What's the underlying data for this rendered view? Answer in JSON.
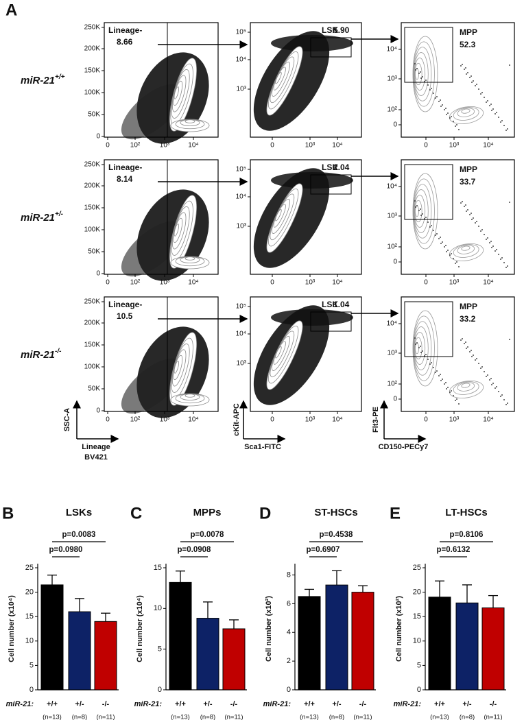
{
  "panel_a": {
    "letter": "A",
    "gate_labels": {
      "lineage": "Lineage-",
      "lsk": "LSK",
      "mpp": "MPP"
    },
    "genotype_name": "miR-21",
    "rows": [
      {
        "genotype": "+/+",
        "lineage": "8.66",
        "lsk": "5.90",
        "mpp": "52.3"
      },
      {
        "genotype": "+/-",
        "lineage": "8.14",
        "lsk": "2.04",
        "mpp": "33.7"
      },
      {
        "genotype": "-/-",
        "lineage": "10.5",
        "lsk": "1.04",
        "mpp": "33.2"
      }
    ],
    "plots": [
      {
        "yticks": [
          "0",
          "50K",
          "100K",
          "150K",
          "200K",
          "250K"
        ],
        "xticks": [
          "0",
          "10²",
          "10³",
          "10⁴"
        ],
        "ylabel": "SSC-A",
        "xlabel": [
          "Lineage",
          "BV421"
        ]
      },
      {
        "yticks": [
          "10³",
          "10⁴",
          "10⁵"
        ],
        "xticks": [
          "0",
          "10³",
          "10⁴"
        ],
        "ylabel": "cKit-APC",
        "xlabel": [
          "Sca1-FITC"
        ]
      },
      {
        "yticks": [
          "0",
          "10²",
          "10³",
          "10⁴"
        ],
        "xticks": [
          "0",
          "10³",
          "10⁴"
        ],
        "ylabel": "Flt3-PE",
        "xlabel": [
          "CD150-PECy7"
        ]
      }
    ]
  },
  "chart_data": [
    {
      "type": "bar",
      "letter": "B",
      "title": "LSKs",
      "y_label": "Cell number (x10⁴)",
      "x_label": "miR-21:",
      "categories": [
        "+/+",
        "+/-",
        "-/-"
      ],
      "category_notes": [
        "(n=13)",
        "(n=8)",
        "(n=11)"
      ],
      "values": [
        21.5,
        16,
        14
      ],
      "errors": [
        2,
        2.7,
        1.7
      ],
      "colors": [
        "#000000",
        "#0d2266",
        "#c00000"
      ],
      "ylim": [
        0,
        25
      ],
      "yticks": [
        0,
        5,
        10,
        15,
        20,
        25
      ],
      "comparisons": [
        {
          "groups": [
            "+/+",
            "+/-"
          ],
          "label": "p=0.0980"
        },
        {
          "groups": [
            "+/+",
            "-/-"
          ],
          "label": "p=0.0083"
        }
      ]
    },
    {
      "type": "bar",
      "letter": "C",
      "title": "MPPs",
      "y_label": "Cell number (x10⁴)",
      "x_label": "miR-21:",
      "categories": [
        "+/+",
        "+/-",
        "-/-"
      ],
      "category_notes": [
        "(n=13)",
        "(n=8)",
        "(n=11)"
      ],
      "values": [
        13.2,
        8.8,
        7.5
      ],
      "errors": [
        1.4,
        2,
        1.1
      ],
      "colors": [
        "#000000",
        "#0d2266",
        "#c00000"
      ],
      "ylim": [
        0,
        15
      ],
      "yticks": [
        0,
        5,
        10,
        15
      ],
      "comparisons": [
        {
          "groups": [
            "+/+",
            "+/-"
          ],
          "label": "p=0.0908"
        },
        {
          "groups": [
            "+/+",
            "-/-"
          ],
          "label": "p=0.0078"
        }
      ]
    },
    {
      "type": "bar",
      "letter": "D",
      "title": "ST-HSCs",
      "y_label": "Cell number (x10²)",
      "x_label": "miR-21:",
      "categories": [
        "+/+",
        "+/-",
        "-/-"
      ],
      "category_notes": [
        "(n=13)",
        "(n=8)",
        "(n=11)"
      ],
      "values": [
        6.5,
        7.3,
        6.8
      ],
      "errors": [
        0.5,
        1,
        0.45
      ],
      "colors": [
        "#000000",
        "#0d2266",
        "#c00000"
      ],
      "ylim": [
        0,
        8.5
      ],
      "yticks": [
        0,
        2,
        4,
        6,
        8
      ],
      "comparisons": [
        {
          "groups": [
            "+/+",
            "+/-"
          ],
          "label": "p=0.6907"
        },
        {
          "groups": [
            "+/+",
            "-/-"
          ],
          "label": "p=0.4538"
        }
      ]
    },
    {
      "type": "bar",
      "letter": "E",
      "title": "LT-HSCs",
      "y_label": "Cell number (x10²)",
      "x_label": "miR-21:",
      "categories": [
        "+/+",
        "+/-",
        "-/-"
      ],
      "category_notes": [
        "(n=13)",
        "(n=8)",
        "(n=11)"
      ],
      "values": [
        19,
        17.8,
        16.8
      ],
      "errors": [
        3.3,
        3.7,
        2.5
      ],
      "colors": [
        "#000000",
        "#0d2266",
        "#c00000"
      ],
      "ylim": [
        0,
        25
      ],
      "yticks": [
        0,
        5,
        10,
        15,
        20,
        25
      ],
      "comparisons": [
        {
          "groups": [
            "+/+",
            "+/-"
          ],
          "label": "p=0.6132"
        },
        {
          "groups": [
            "+/+",
            "-/-"
          ],
          "label": "p=0.8106"
        }
      ]
    }
  ]
}
